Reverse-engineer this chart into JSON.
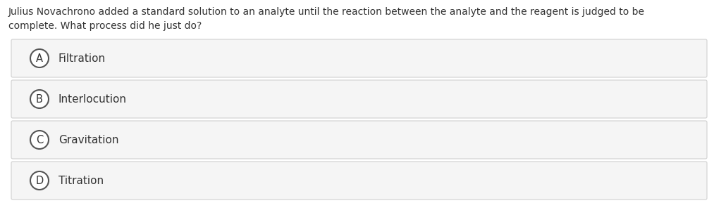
{
  "question_line1": "Julius Novachrono added a standard solution to an analyte until the reaction between the analyte and the reagent is judged to be",
  "question_line2": "complete. What process did he just do?",
  "options": [
    {
      "label": "A",
      "text": "Filtration"
    },
    {
      "label": "B",
      "text": "Interlocution"
    },
    {
      "label": "C",
      "text": "Gravitation"
    },
    {
      "label": "D",
      "text": "Titration"
    }
  ],
  "bg_color": "#ffffff",
  "option_bg_color": "#f5f5f5",
  "option_border_color": "#d0d0d0",
  "text_color": "#333333",
  "circle_edge_color": "#555555",
  "question_fontsize": 10.0,
  "option_fontsize": 11.0,
  "label_fontsize": 10.5
}
